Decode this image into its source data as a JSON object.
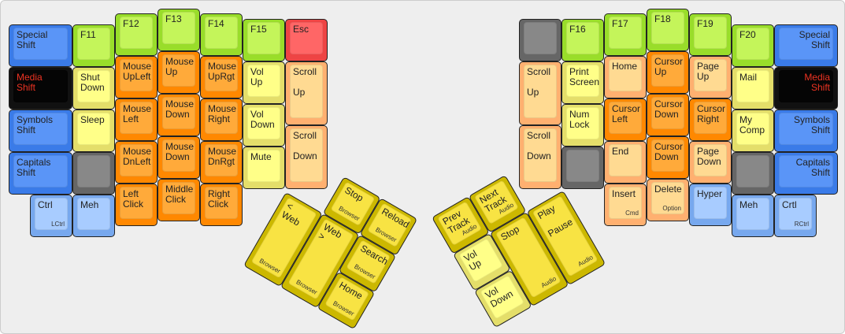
{
  "palette": {
    "blue": {
      "outer": "#3a7be8",
      "inner": "#5a95f7",
      "text": "#222222"
    },
    "black": {
      "outer": "#111111",
      "inner": "#050505",
      "text": "#ee3322"
    },
    "lblue": {
      "outer": "#77a8ee",
      "inner": "#a8ccff",
      "text": "#222222"
    },
    "green": {
      "outer": "#99dd2a",
      "inner": "#c4f55a",
      "text": "#222222"
    },
    "lyellow": {
      "outer": "#e4de6a",
      "inner": "#ffff88",
      "text": "#222222"
    },
    "grey": {
      "outer": "#666666",
      "inner": "#888888",
      "text": "#222222"
    },
    "orange": {
      "outer": "#ff8800",
      "inner": "#ffaa3a",
      "text": "#222222"
    },
    "lorange": {
      "outer": "#ffb070",
      "inner": "#ffda92",
      "text": "#222222"
    },
    "red": {
      "outer": "#ee4444",
      "inner": "#ff6666",
      "text": "#222222"
    },
    "yellow": {
      "outer": "#ccb800",
      "inner": "#f8e343",
      "text": "#222222"
    }
  },
  "left": {
    "keys": [
      {
        "label": "Special\nShift",
        "color": "blue"
      },
      {
        "label": "Media\nShift",
        "color": "black"
      },
      {
        "label": "Symbols\nShift",
        "color": "blue"
      },
      {
        "label": "Capitals\nShift",
        "color": "blue"
      },
      {
        "label": "Ctrl",
        "sub": "LCtrl",
        "color": "lblue"
      },
      {
        "label": "F11",
        "color": "green"
      },
      {
        "label": "Shut\nDown",
        "color": "lyellow"
      },
      {
        "label": "Sleep",
        "color": "lyellow"
      },
      {
        "label": "",
        "color": "grey"
      },
      {
        "label": "Meh",
        "color": "lblue"
      },
      {
        "label": "F12",
        "color": "green"
      },
      {
        "label": "Mouse\nUpLeft",
        "color": "orange"
      },
      {
        "label": "Mouse\nLeft",
        "color": "orange"
      },
      {
        "label": "Mouse\nDnLeft",
        "color": "orange"
      },
      {
        "label": "Left\nClick",
        "color": "orange"
      },
      {
        "label": "F13",
        "color": "green"
      },
      {
        "label": "Mouse\nUp",
        "color": "orange"
      },
      {
        "label": "Mouse\nDown",
        "color": "orange"
      },
      {
        "label": "Mouse\nDown",
        "color": "orange"
      },
      {
        "label": "Middle\nClick",
        "color": "orange"
      },
      {
        "label": "F14",
        "color": "green"
      },
      {
        "label": "Mouse\nUpRgt",
        "color": "orange"
      },
      {
        "label": "Mouse\nRight",
        "color": "orange"
      },
      {
        "label": "Mouse\nDnRgt",
        "color": "orange"
      },
      {
        "label": "Right\nClick",
        "color": "orange"
      },
      {
        "label": "F15",
        "color": "green"
      },
      {
        "label": "Vol\nUp",
        "color": "lyellow"
      },
      {
        "label": "Vol\nDown",
        "color": "lyellow"
      },
      {
        "label": "Mute",
        "color": "lyellow"
      },
      {
        "label": "Esc",
        "color": "red"
      },
      {
        "label": "Scroll\n\nUp",
        "color": "lorange"
      },
      {
        "label": "Scroll\n\nDown",
        "color": "lorange"
      }
    ]
  },
  "right": {
    "keys": [
      {
        "label": "",
        "color": "grey"
      },
      {
        "label": "Scroll\n\nUp",
        "color": "lorange"
      },
      {
        "label": "Scroll\n\nDown",
        "color": "lorange"
      },
      {
        "label": "F16",
        "color": "green"
      },
      {
        "label": "Print\nScreen",
        "color": "lyellow"
      },
      {
        "label": "Num\nLock",
        "color": "lyellow"
      },
      {
        "label": "",
        "color": "grey"
      },
      {
        "label": "F17",
        "color": "green"
      },
      {
        "label": "Home",
        "color": "lorange"
      },
      {
        "label": "Cursor\nLeft",
        "color": "orange"
      },
      {
        "label": "End",
        "color": "lorange"
      },
      {
        "label": "Insert",
        "sub": "Cmd",
        "color": "lorange"
      },
      {
        "label": "F18",
        "color": "green"
      },
      {
        "label": "Cursor\nUp",
        "color": "orange"
      },
      {
        "label": "Cursor\nDown",
        "color": "orange"
      },
      {
        "label": "Cursor\nDown",
        "color": "orange"
      },
      {
        "label": "Delete",
        "sub": "Option",
        "color": "lorange"
      },
      {
        "label": "F19",
        "color": "green"
      },
      {
        "label": "Page\nUp",
        "color": "lorange"
      },
      {
        "label": "Cursor\nRight",
        "color": "orange"
      },
      {
        "label": "Page\nDown",
        "color": "lorange"
      },
      {
        "label": "Hyper",
        "color": "lblue"
      },
      {
        "label": "F20",
        "color": "green"
      },
      {
        "label": "Mail",
        "color": "lyellow"
      },
      {
        "label": "My\nComp",
        "color": "lyellow"
      },
      {
        "label": "",
        "color": "grey"
      },
      {
        "label": "Meh",
        "color": "lblue"
      },
      {
        "label": "Special\nShift",
        "color": "blue",
        "align": "right"
      },
      {
        "label": "Media\nShift",
        "color": "black",
        "align": "right"
      },
      {
        "label": "Symbols\nShift",
        "color": "blue",
        "align": "right"
      },
      {
        "label": "Capitals\nShift",
        "color": "blue",
        "align": "right"
      },
      {
        "label": "Crtl",
        "sub": "RCtrl",
        "color": "lblue"
      }
    ]
  },
  "left_thumb": {
    "keys": [
      {
        "label": "Stop",
        "sub": "Browser",
        "color": "yellow"
      },
      {
        "label": "Reload",
        "sub": "Browser",
        "color": "yellow"
      },
      {
        "label": "< Web",
        "sub": "Browser",
        "color": "yellow"
      },
      {
        "label": "Web >",
        "sub": "Browser",
        "color": "yellow"
      },
      {
        "label": "Search",
        "sub": "Browser",
        "color": "yellow"
      },
      {
        "label": "Home",
        "sub": "Browser",
        "color": "yellow"
      }
    ]
  },
  "right_thumb": {
    "keys": [
      {
        "label": "Prev\nTrack",
        "sub": "Audio",
        "color": "yellow"
      },
      {
        "label": "Next\nTrack",
        "sub": "Audio",
        "color": "yellow"
      },
      {
        "label": "Vol\nUp",
        "color": "lyellow"
      },
      {
        "label": "Stop",
        "sub": "Audio",
        "color": "yellow"
      },
      {
        "label": "Play\n\nPause",
        "sub": "Audio",
        "color": "yellow"
      },
      {
        "label": "Vol\nDown",
        "color": "lyellow"
      }
    ]
  }
}
